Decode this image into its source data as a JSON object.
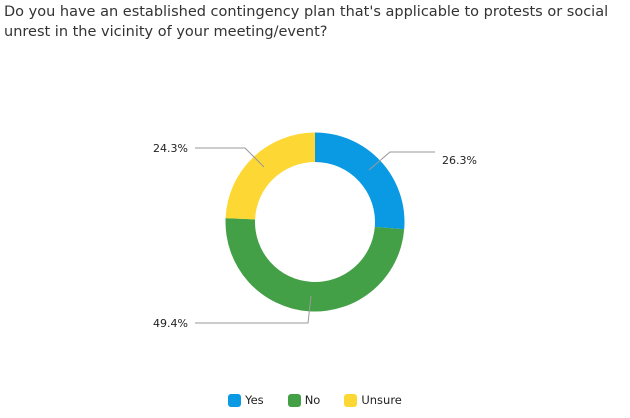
{
  "chart_data": {
    "type": "pie",
    "subtype": "donut",
    "title": "Do you have an established contingency plan that's applicable to protests or social unrest in the vicinity of your meeting/event?",
    "categories": [
      "Yes",
      "No",
      "Unsure"
    ],
    "values": [
      26.3,
      49.4,
      24.3
    ],
    "labels": [
      "26.3%",
      "49.4%",
      "24.3%"
    ],
    "colors": [
      "#0a9ae3",
      "#44a047",
      "#fdd835"
    ],
    "legend": "bottom"
  }
}
